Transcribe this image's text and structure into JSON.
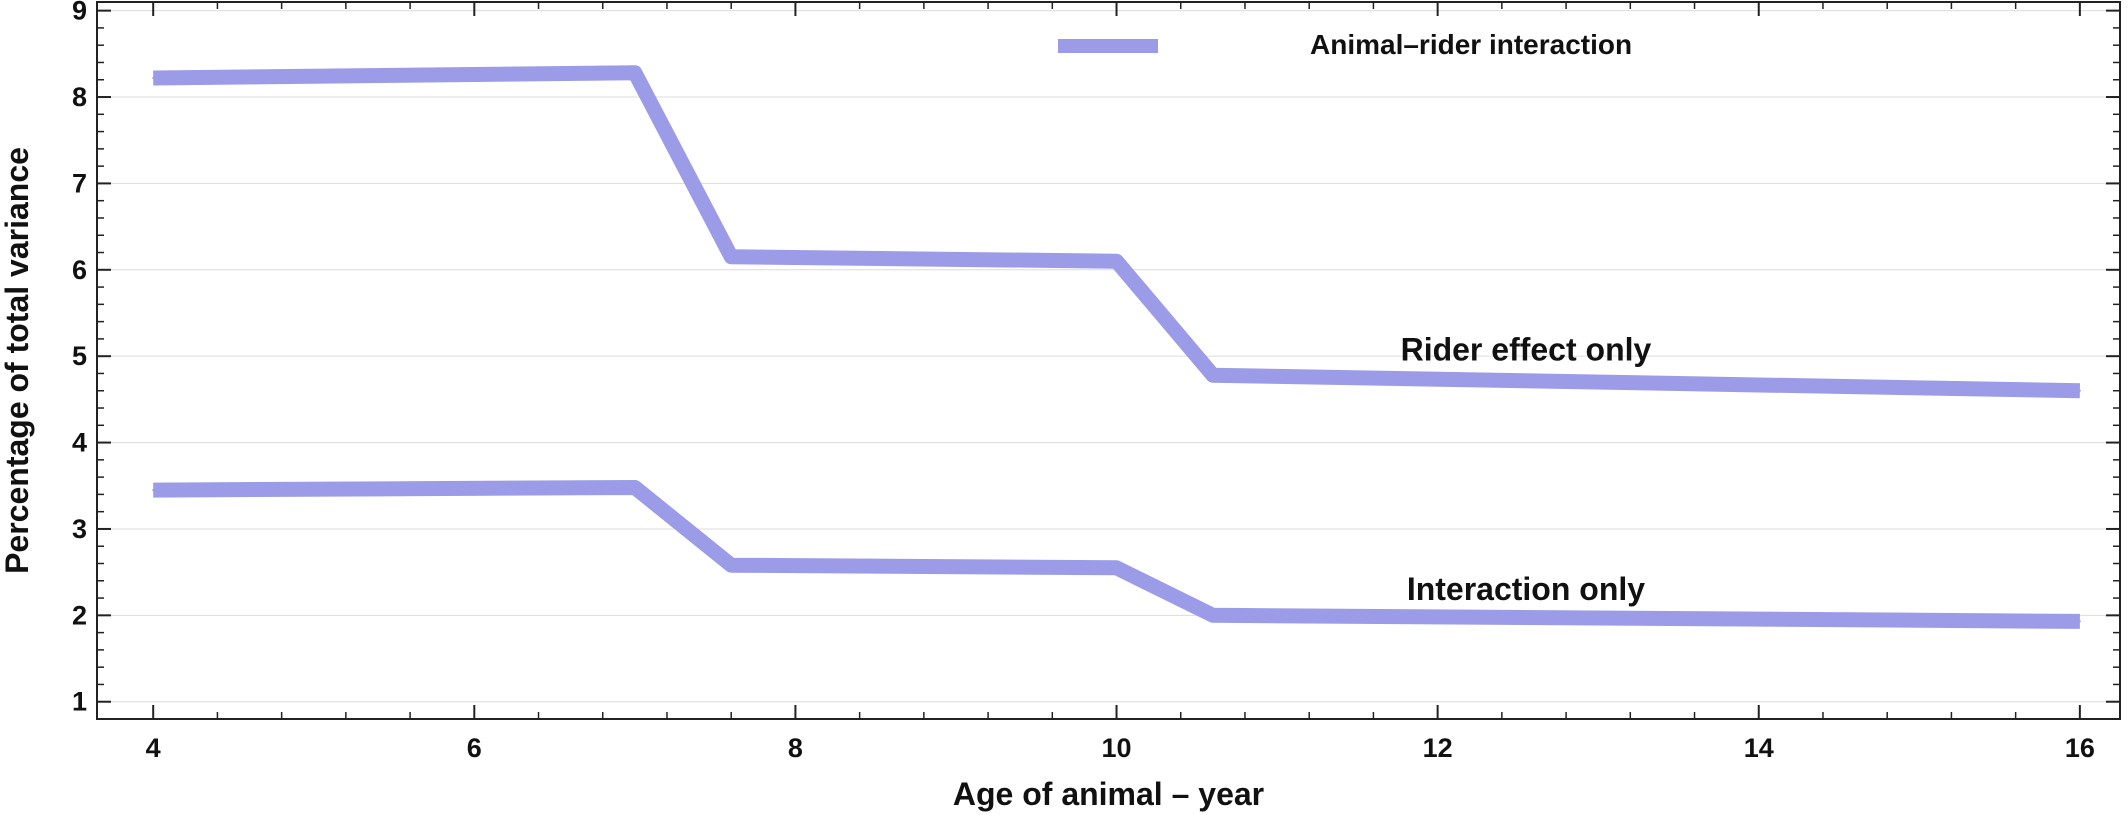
{
  "chart_data": {
    "type": "line",
    "xlabel": "Age of animal – year",
    "ylabel": "Percentage of total variance",
    "xlim": [
      3.65,
      16.25
    ],
    "ylim": [
      0.8,
      9.1
    ],
    "xticks": [
      4,
      6,
      8,
      10,
      12,
      14,
      16
    ],
    "yticks": [
      1,
      2,
      3,
      4,
      5,
      6,
      7,
      8,
      9
    ],
    "grid": "horizontal",
    "legend": {
      "placement": "top-center",
      "entries": [
        "Animal–rider interaction"
      ]
    },
    "color": "#9b9be8",
    "series": [
      {
        "name": "Animal–rider interaction",
        "x": [
          4,
          7,
          7.6,
          10,
          10.6,
          16
        ],
        "y": [
          8.22,
          8.28,
          6.15,
          6.1,
          4.78,
          4.6
        ]
      },
      {
        "name": "Animal–rider interaction",
        "x": [
          4,
          7,
          7.6,
          10,
          10.6,
          16
        ],
        "y": [
          3.45,
          3.48,
          2.58,
          2.55,
          2.0,
          1.93
        ]
      }
    ],
    "annotations": [
      {
        "text": "Rider effect only",
        "x": 12.55,
        "y": 4.95
      },
      {
        "text": "Interaction only",
        "x": 12.55,
        "y": 2.18
      }
    ]
  }
}
